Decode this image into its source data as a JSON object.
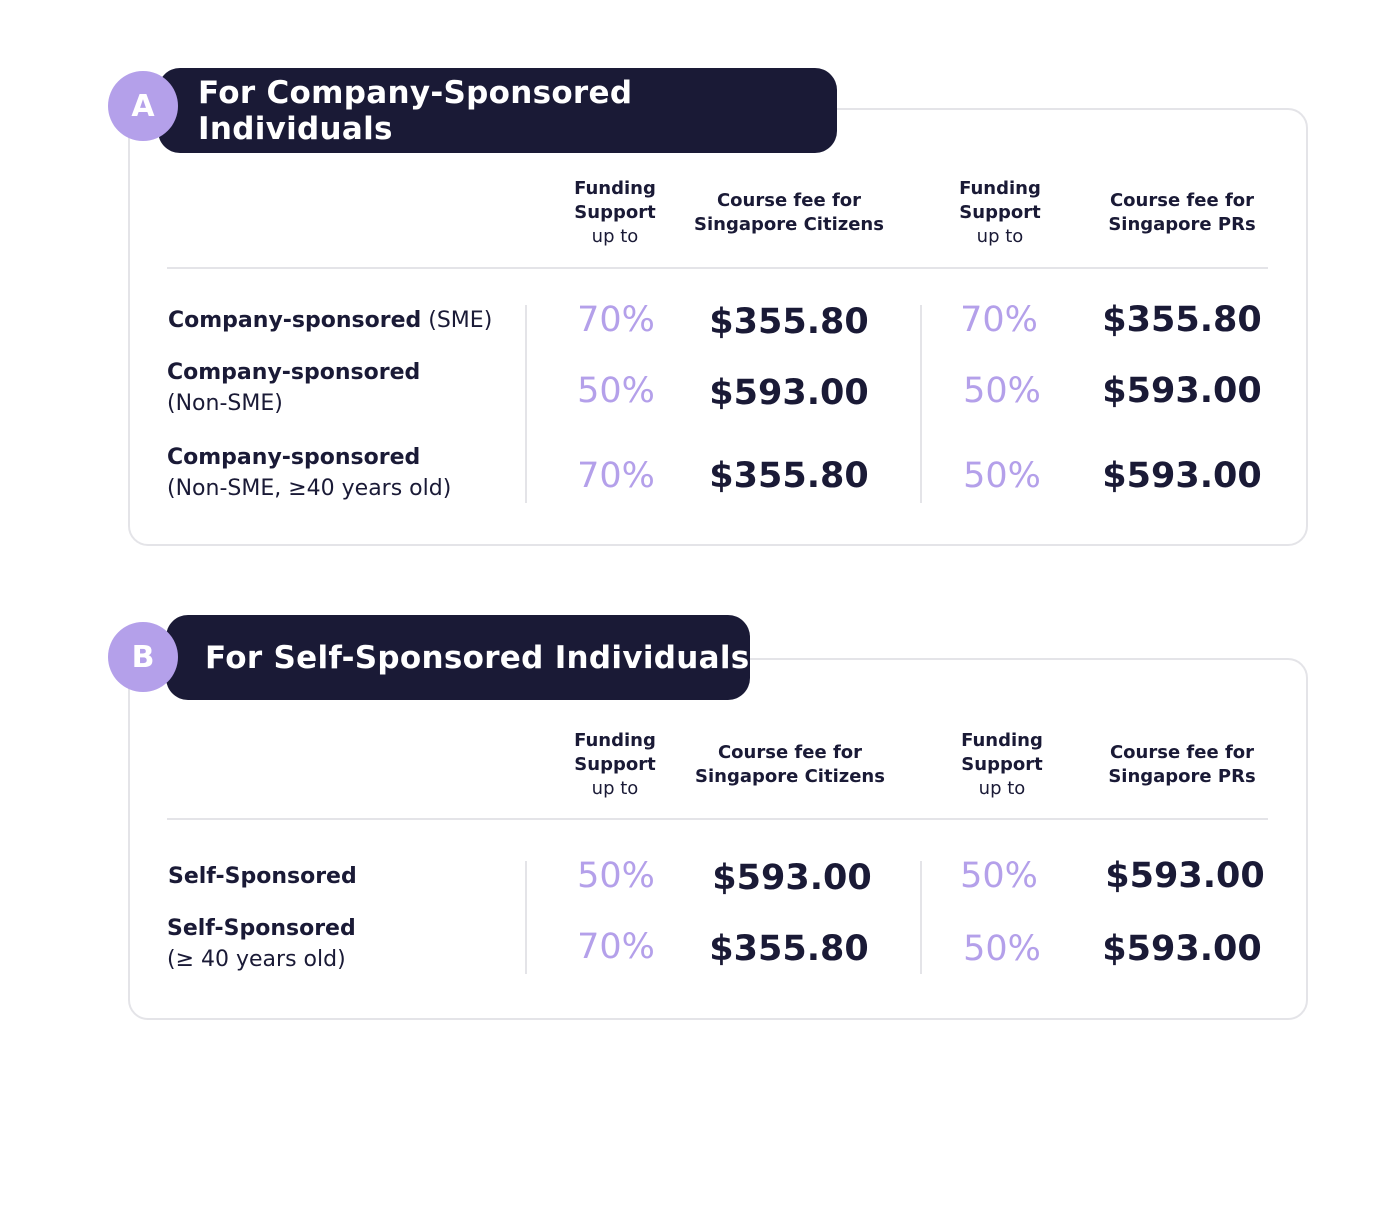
{
  "headers": {
    "funding_title": "Funding Support",
    "funding_sub": "up to",
    "fee_citizens": "Course fee for Singapore Citizens",
    "fee_prs": "Course fee for Singapore PRs"
  },
  "section_a": {
    "badge": "A",
    "title": "For Company-Sponsored Individuals",
    "rows": [
      {
        "label_bold": "Company-sponsored",
        "label_extra": " (SME)",
        "citizen_pct": "70%",
        "citizen_fee": "$355.80",
        "pr_pct": "70%",
        "pr_fee": "$355.80"
      },
      {
        "label_bold": "Company-sponsored",
        "label_extra": "(Non-SME)",
        "citizen_pct": "50%",
        "citizen_fee": "$593.00",
        "pr_pct": "50%",
        "pr_fee": "$593.00"
      },
      {
        "label_bold": "Company-sponsored",
        "label_extra": "(Non-SME, ≥40 years old)",
        "citizen_pct": "70%",
        "citizen_fee": "$355.80",
        "pr_pct": "50%",
        "pr_fee": "$593.00"
      }
    ]
  },
  "section_b": {
    "badge": "B",
    "title": "For Self-Sponsored Individuals",
    "rows": [
      {
        "label_bold": "Self-Sponsored",
        "label_extra": "",
        "citizen_pct": "50%",
        "citizen_fee": "$593.00",
        "pr_pct": "50%",
        "pr_fee": "$593.00"
      },
      {
        "label_bold": "Self-Sponsored",
        "label_extra": "(≥ 40 years old)",
        "citizen_pct": "70%",
        "citizen_fee": "$355.80",
        "pr_pct": "50%",
        "pr_fee": "$593.00"
      }
    ]
  },
  "colors": {
    "navy": "#1a1a36",
    "lavender": "#b4a0ea",
    "border": "#e4e4e8"
  }
}
